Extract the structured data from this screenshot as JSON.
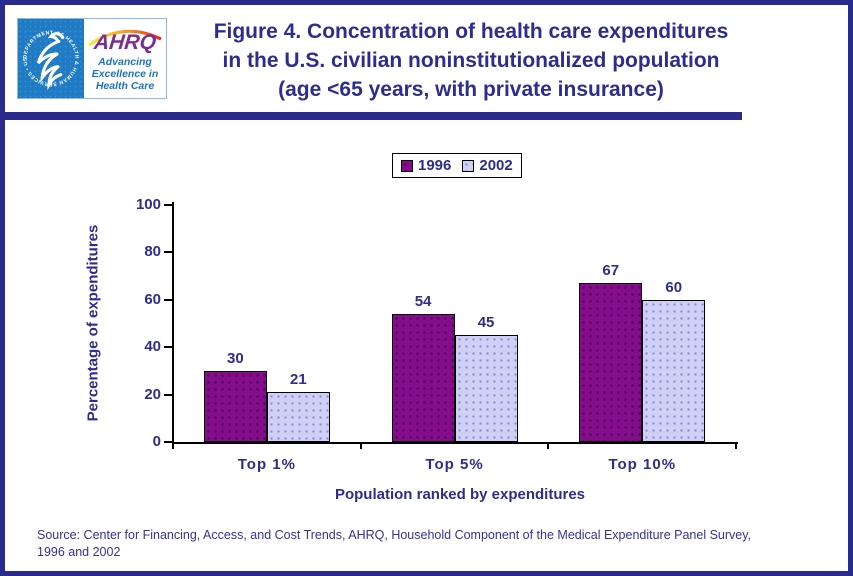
{
  "page": {
    "border_color": "#2b2b8f",
    "background": "#ffffff"
  },
  "logo": {
    "hhs_circle_text": "DEPARTMENT OF HEALTH & HUMAN SERVICES • USA",
    "ahrq_acronym": "AHRQ",
    "tagline_line1": "Advancing",
    "tagline_line2": "Excellence in",
    "tagline_line3": "Health Care",
    "colors": {
      "hhs_blue": "#1f7bc4",
      "ahrq_purple": "#7b2e8e",
      "tagline_blue": "#1b75bc",
      "arc_orange": "#f7941d"
    }
  },
  "title": {
    "line1": "Figure 4. Concentration of health care expenditures",
    "line2": "in the U.S. civilian noninstitutionalized population",
    "line3": "(age <65 years, with private insurance)",
    "color": "#2d2d8f"
  },
  "chart_data": {
    "type": "bar",
    "title": "",
    "categories": [
      "Top 1%",
      "Top 5%",
      "Top 10%"
    ],
    "series": [
      {
        "name": "1996",
        "values": [
          30,
          54,
          67
        ],
        "color": "#850c8a",
        "dot_color": "#4d0355"
      },
      {
        "name": "2002",
        "values": [
          21,
          45,
          60
        ],
        "color": "#d0d0f6",
        "dot_color": "#8f8fd9"
      }
    ],
    "xlabel": "Population ranked by expenditures",
    "ylabel": "Percentage of expenditures",
    "ylim": [
      0,
      100
    ],
    "yticks": [
      0,
      20,
      40,
      60,
      80,
      100
    ],
    "grid": false,
    "legend_position": "top-center",
    "value_labels": true,
    "text_color": "#2d2d8f",
    "axis_color": "#000000"
  },
  "source": {
    "line1": "Source: Center for Financing, Access, and Cost Trends, AHRQ, Household Component of the Medical Expenditure Panel Survey,",
    "line2": "1996 and 2002"
  }
}
